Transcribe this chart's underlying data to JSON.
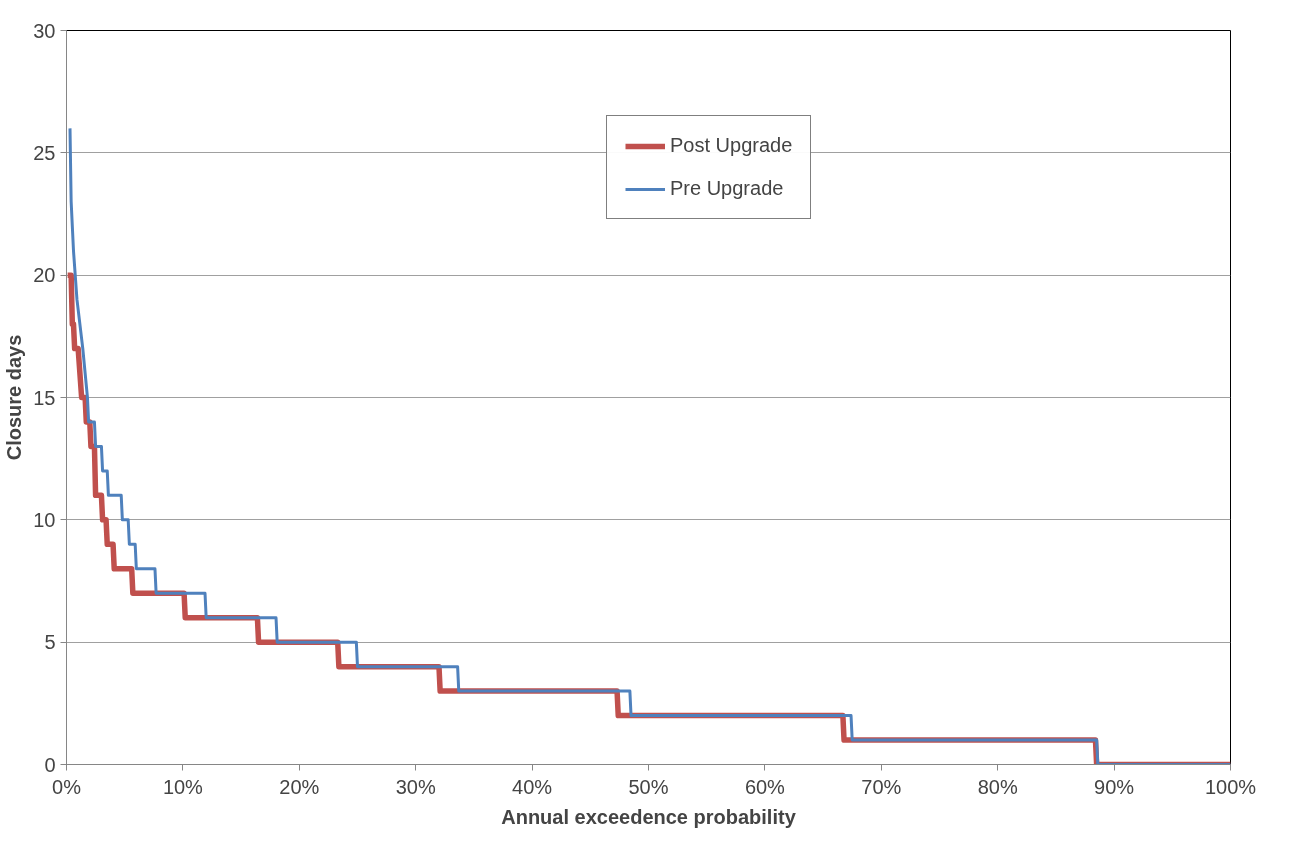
{
  "chart_data": {
    "type": "line",
    "xlabel": "Annual exceedence probability",
    "ylabel": "Closure days",
    "xlim": [
      0,
      100
    ],
    "ylim": [
      0,
      30
    ],
    "xticks": [
      {
        "value": 0,
        "label": "0%"
      },
      {
        "value": 10,
        "label": "10%"
      },
      {
        "value": 20,
        "label": "20%"
      },
      {
        "value": 30,
        "label": "30%"
      },
      {
        "value": 40,
        "label": "40%"
      },
      {
        "value": 50,
        "label": "50%"
      },
      {
        "value": 60,
        "label": "60%"
      },
      {
        "value": 70,
        "label": "70%"
      },
      {
        "value": 80,
        "label": "80%"
      },
      {
        "value": 90,
        "label": "90%"
      },
      {
        "value": 100,
        "label": "100%"
      }
    ],
    "yticks": [
      0,
      5,
      10,
      15,
      20,
      25,
      30
    ],
    "grid": "y",
    "legend": "top right",
    "marker": "none",
    "line_style": "solid",
    "series": [
      {
        "name": "Post Upgrade",
        "color": "#c0504d",
        "x": [
          0.1,
          0.4,
          0.5,
          0.6,
          0.7,
          1.0,
          1.3,
          1.6,
          1.7,
          2.0,
          2.1,
          2.4,
          2.5,
          3.0,
          3.1,
          3.4,
          3.5,
          4.0,
          4.1,
          5.6,
          5.7,
          10.1,
          10.2,
          16.4,
          16.5,
          23.3,
          23.4,
          32.0,
          32.1,
          47.3,
          47.4,
          66.7,
          66.8,
          88.4,
          88.5,
          100
        ],
        "values": [
          20,
          20,
          18,
          18,
          17,
          17,
          15,
          15,
          14,
          14,
          13,
          13,
          11,
          11,
          10,
          10,
          9,
          9,
          8,
          8,
          7,
          7,
          6,
          6,
          5,
          5,
          4,
          4,
          3,
          3,
          2,
          2,
          1,
          1,
          0,
          0
        ]
      },
      {
        "name": "Pre Upgrade",
        "color": "#4f81bd",
        "x": [
          0.3,
          0.4,
          0.6,
          0.9,
          1.4,
          1.6,
          1.8,
          1.9,
          2.4,
          2.5,
          3.0,
          3.1,
          3.5,
          3.6,
          4.7,
          4.8,
          5.3,
          5.4,
          5.9,
          6.0,
          7.6,
          7.7,
          11.9,
          12.0,
          18.0,
          18.1,
          24.9,
          25.0,
          33.6,
          33.7,
          48.4,
          48.5,
          67.4,
          67.5,
          88.5,
          88.6,
          100
        ],
        "values": [
          26,
          23,
          21,
          19,
          17,
          16,
          15,
          14,
          14,
          13,
          13,
          12,
          12,
          11,
          11,
          10,
          10,
          9,
          9,
          8,
          8,
          7,
          7,
          6,
          6,
          5,
          5,
          4,
          4,
          3,
          3,
          2,
          2,
          1,
          1,
          0,
          0
        ]
      }
    ]
  }
}
